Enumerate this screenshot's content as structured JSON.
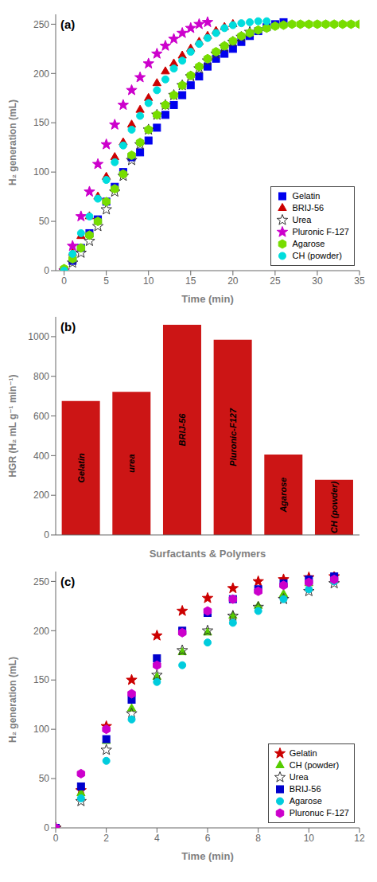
{
  "chart_data": [
    {
      "type": "scatter",
      "title": "(a)",
      "x_label": "Time (min)",
      "y_label": "H₂ generation (mL)",
      "xlim": [
        -1,
        35
      ],
      "ylim": [
        0,
        260
      ],
      "xticks": [
        0,
        5,
        10,
        15,
        20,
        25,
        30,
        35
      ],
      "yticks": [
        0,
        50,
        100,
        150,
        200,
        250
      ],
      "grid": false,
      "legend": "lower right",
      "series": [
        {
          "name": "Gelatin",
          "color": "#0000EE",
          "marker": "square",
          "x": [
            0,
            1,
            2,
            3,
            4,
            5,
            6,
            7,
            8,
            9,
            10,
            11,
            12,
            13,
            14,
            15,
            16,
            17,
            18,
            19,
            20,
            21,
            22,
            23,
            24,
            25,
            26
          ],
          "values": [
            0,
            10,
            23,
            38,
            52,
            70,
            85,
            100,
            115,
            120,
            132,
            145,
            158,
            168,
            178,
            188,
            197,
            207,
            215,
            220,
            225,
            232,
            238,
            243,
            247,
            250,
            252
          ]
        },
        {
          "name": "BRIJ-56",
          "color": "#CC0000",
          "marker": "triangle",
          "x": [
            0,
            1,
            2,
            3,
            4,
            5,
            6,
            7,
            8,
            9,
            10,
            11,
            12,
            13,
            14,
            15,
            16,
            17,
            18,
            19,
            20
          ],
          "values": [
            0,
            18,
            35,
            55,
            75,
            95,
            115,
            130,
            148,
            163,
            175,
            190,
            202,
            210,
            218,
            225,
            232,
            238,
            243,
            247,
            250
          ]
        },
        {
          "name": "Urea",
          "color": "#333333",
          "marker": "hollow_star",
          "x": [
            0,
            1,
            2,
            3,
            4,
            5,
            6,
            7,
            8,
            9,
            10,
            11,
            12,
            13,
            14,
            15,
            16,
            17,
            18,
            19,
            20,
            21,
            22
          ],
          "values": [
            0,
            8,
            18,
            30,
            45,
            62,
            80,
            96,
            112,
            128,
            143,
            158,
            168,
            178,
            188,
            197,
            205,
            213,
            220,
            227,
            232,
            237,
            242
          ]
        },
        {
          "name": "Pluronic F-127",
          "color": "#CC00CC",
          "marker": "star",
          "x": [
            0,
            1,
            2,
            3,
            4,
            5,
            6,
            7,
            8,
            9,
            10,
            11,
            12,
            13,
            14,
            15,
            16,
            17
          ],
          "values": [
            0,
            25,
            55,
            80,
            108,
            128,
            148,
            168,
            183,
            196,
            210,
            220,
            228,
            235,
            241,
            246,
            250,
            252
          ]
        },
        {
          "name": "Agarose",
          "color": "#77DD00",
          "marker": "hexagon",
          "x": [
            0,
            1,
            2,
            3,
            4,
            5,
            6,
            7,
            8,
            9,
            10,
            11,
            12,
            13,
            14,
            15,
            16,
            17,
            18,
            19,
            20,
            21,
            22,
            23,
            24,
            25,
            26,
            27,
            28,
            29,
            30,
            31,
            32,
            33,
            34,
            35
          ],
          "values": [
            2,
            12,
            23,
            36,
            50,
            70,
            83,
            98,
            117,
            130,
            143,
            158,
            168,
            178,
            188,
            198,
            207,
            215,
            222,
            228,
            233,
            238,
            241,
            244,
            246,
            248,
            249,
            250,
            250,
            250,
            250,
            250,
            250,
            250,
            250,
            250
          ]
        },
        {
          "name": "CH (powder)",
          "color": "#00DDDD",
          "marker": "circle",
          "x": [
            0,
            1,
            2,
            3,
            4,
            5,
            6,
            7,
            8,
            9,
            10,
            11,
            12,
            13,
            14,
            15,
            16,
            17,
            18,
            19,
            20,
            21,
            22,
            23,
            24
          ],
          "values": [
            0,
            17,
            38,
            55,
            73,
            92,
            110,
            127,
            143,
            157,
            170,
            183,
            194,
            205,
            213,
            222,
            230,
            236,
            241,
            246,
            249,
            251,
            252,
            253,
            253
          ]
        }
      ]
    },
    {
      "type": "bar",
      "title": "(b)",
      "x_label": "Surfactants & Polymers",
      "y_label": "HGR (H₂ mL g⁻¹ min⁻¹)",
      "categories": [
        "Gelatin",
        "urea",
        "BRIJ-56",
        "Pluronic-F127",
        "Agarose",
        "CH (powder)"
      ],
      "values": [
        675,
        722,
        1060,
        985,
        405,
        278
      ],
      "color": "#CC1515",
      "ylim": [
        0,
        1100
      ],
      "yticks": [
        0,
        200,
        400,
        600,
        800,
        1000
      ],
      "grid": false,
      "tick_labels": "y"
    },
    {
      "type": "scatter",
      "title": "(c)",
      "x_label": "Time (min)",
      "y_label": "H₂ generation (mL)",
      "xlim": [
        0,
        12
      ],
      "ylim": [
        0,
        260
      ],
      "xticks": [
        0,
        2,
        4,
        6,
        8,
        10,
        12
      ],
      "yticks": [
        0,
        50,
        100,
        150,
        200,
        250
      ],
      "grid": false,
      "legend": "lower right",
      "series": [
        {
          "name": "Gelatin",
          "color": "#CC0000",
          "marker": "star",
          "x": [
            0,
            1,
            2,
            3,
            4,
            5,
            6,
            7,
            8,
            9,
            10,
            11
          ],
          "values": [
            0,
            38,
            103,
            150,
            195,
            220,
            233,
            243,
            250,
            252,
            254,
            255
          ]
        },
        {
          "name": "CH (powder)",
          "color": "#55CC00",
          "marker": "triangle",
          "x": [
            0,
            1,
            2,
            3,
            4,
            5,
            6,
            7,
            8,
            9,
            10,
            11
          ],
          "values": [
            0,
            35,
            88,
            121,
            153,
            178,
            198,
            215,
            225,
            237,
            248,
            252
          ]
        },
        {
          "name": "Urea",
          "color": "#333333",
          "marker": "hollow_star",
          "x": [
            0,
            1,
            2,
            3,
            4,
            5,
            6,
            7,
            8,
            9,
            10,
            11
          ],
          "values": [
            0,
            27,
            79,
            116,
            155,
            180,
            200,
            215,
            224,
            232,
            240,
            248
          ]
        },
        {
          "name": "BRIJ-56",
          "color": "#0000CC",
          "marker": "square",
          "x": [
            0,
            1,
            2,
            3,
            4,
            5,
            6,
            7,
            8,
            9,
            10,
            11
          ],
          "values": [
            0,
            42,
            90,
            130,
            172,
            200,
            218,
            232,
            242,
            248,
            252,
            255
          ]
        },
        {
          "name": "Agarose",
          "color": "#00CCDD",
          "marker": "circle",
          "x": [
            0,
            1,
            2,
            3,
            4,
            5,
            6,
            7,
            8,
            9,
            10,
            11
          ],
          "values": [
            0,
            30,
            68,
            110,
            148,
            165,
            188,
            208,
            220,
            232,
            242,
            250
          ]
        },
        {
          "name": "Pluronuc F-127",
          "color": "#CC00CC",
          "marker": "hexagon",
          "x": [
            0,
            1,
            2,
            3,
            4,
            5,
            6,
            7,
            8,
            9,
            10,
            11
          ],
          "values": [
            0,
            55,
            100,
            136,
            165,
            198,
            220,
            232,
            240,
            246,
            249,
            252
          ]
        }
      ]
    }
  ]
}
